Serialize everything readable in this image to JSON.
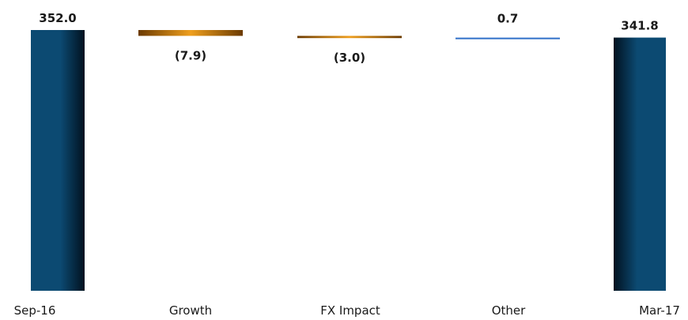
{
  "chart_data": {
    "type": "bar",
    "subtype": "waterfall",
    "categories": [
      "Sep-16",
      "Growth",
      "FX Impact",
      "Other",
      "Mar-17"
    ],
    "values": [
      352.0,
      -7.9,
      -3.0,
      0.7,
      341.8
    ],
    "kinds": [
      "total",
      "delta",
      "delta",
      "delta",
      "total"
    ],
    "data_labels": [
      "352.0",
      "(7.9)",
      "(3.0)",
      "0.7",
      "341.8"
    ],
    "title": "",
    "xlabel": "",
    "ylabel": "",
    "ylim": [
      0,
      352.0
    ],
    "grid": false,
    "legend": "none",
    "colors": {
      "total_light": "#0c4a72",
      "total_dark": "#01111f",
      "delta_dark": "#6b3a00",
      "delta_light": "#ef9f1e",
      "other_line": "#2f6fc8"
    }
  }
}
